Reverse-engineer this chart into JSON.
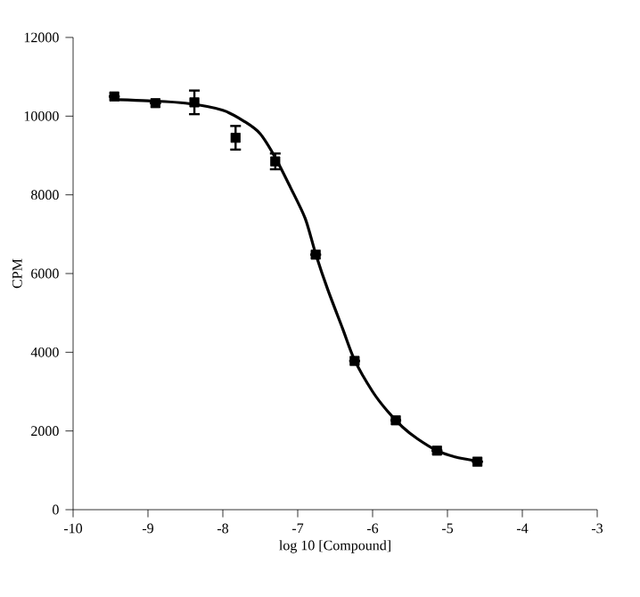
{
  "chart_data": {
    "type": "scatter",
    "xlabel": "log 10 [Compound]",
    "ylabel": "CPM",
    "xlim": [
      -10,
      -3
    ],
    "xticks": [
      -10,
      -9,
      -8,
      -7,
      -6,
      -5,
      -4,
      -3
    ],
    "ylim": [
      0,
      12000
    ],
    "yticks": [
      0,
      2000,
      4000,
      6000,
      8000,
      10000,
      12000
    ],
    "grid": false,
    "series": [
      {
        "color": "#000000",
        "marker": "square",
        "x": [
          -9.45,
          -8.9,
          -8.38,
          -7.83,
          -7.3,
          -6.76,
          -6.24,
          -5.69,
          -5.14,
          -4.6
        ],
        "values": [
          10500,
          10330,
          10350,
          9450,
          8850,
          6480,
          3780,
          2270,
          1500,
          1220
        ],
        "errors": [
          null,
          null,
          300,
          300,
          200,
          null,
          null,
          null,
          null,
          null
        ]
      },
      {
        "type": "line",
        "color": "#000000",
        "line_style": "solid",
        "x": [
          -9.4,
          -9,
          -8.5,
          -8,
          -7.7,
          -7.5,
          -7.3,
          -7.1,
          -6.9,
          -6.76,
          -6.6,
          -6.4,
          -6.24,
          -6,
          -5.8,
          -5.6,
          -5.4,
          -5.14,
          -4.9,
          -4.6
        ],
        "values": [
          10420,
          10390,
          10330,
          10150,
          9850,
          9550,
          8950,
          8200,
          7400,
          6500,
          5600,
          4600,
          3800,
          3000,
          2500,
          2100,
          1800,
          1500,
          1340,
          1230
        ]
      }
    ]
  }
}
